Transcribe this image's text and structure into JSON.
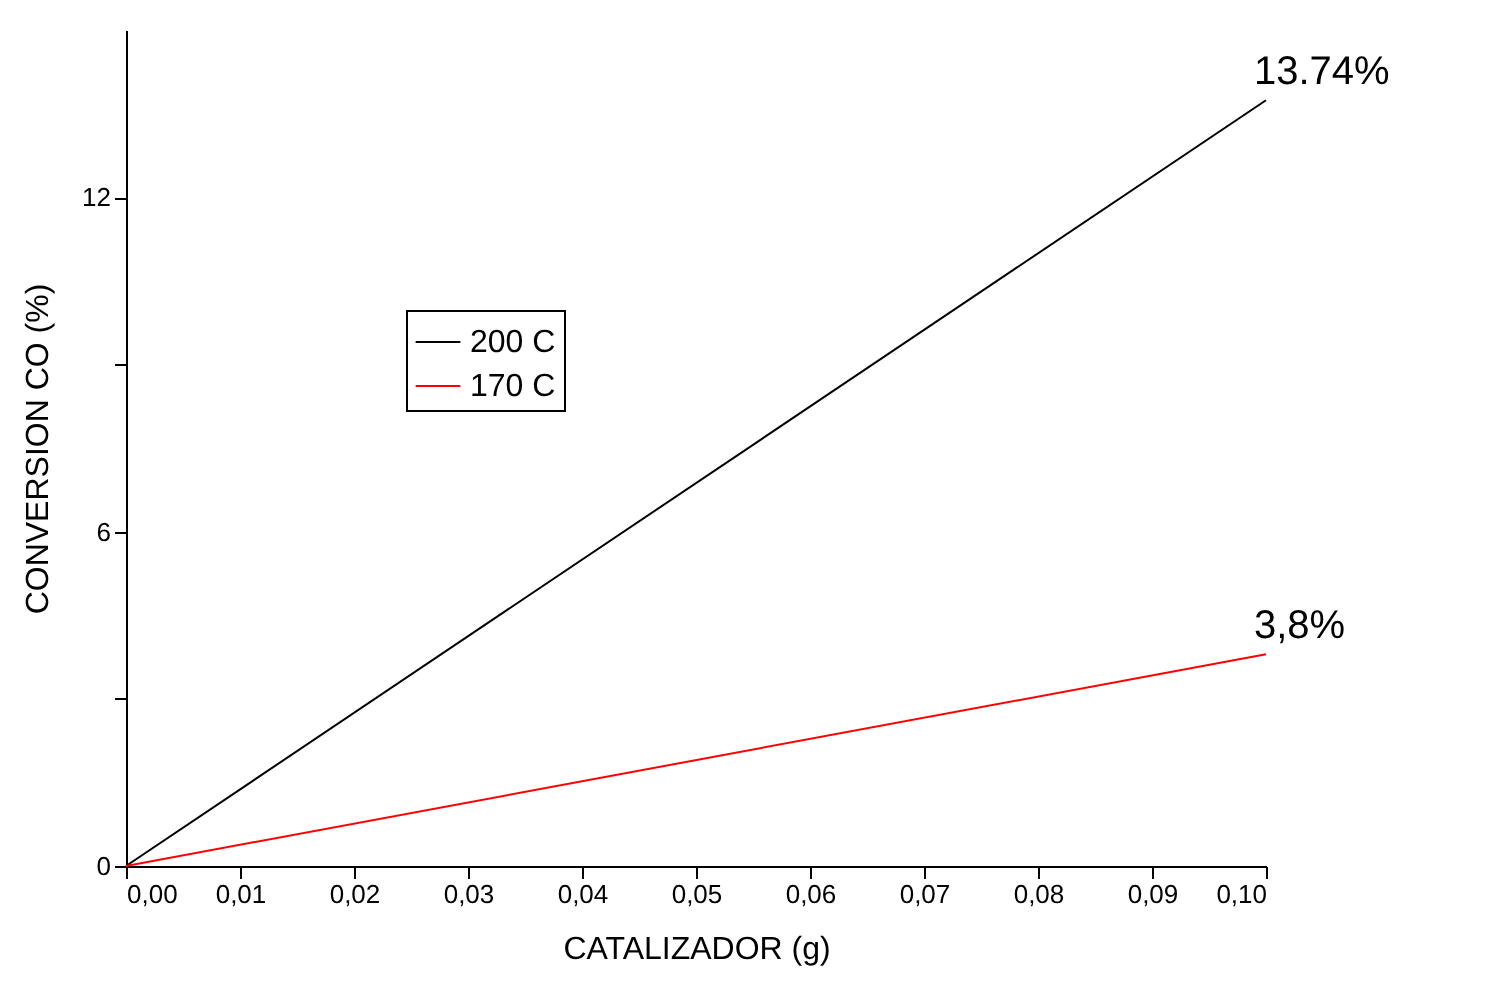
{
  "chart_data": {
    "type": "line",
    "xlabel": "CATALIZADOR (g)",
    "ylabel": "CONVERSION CO (%)",
    "x": [
      0,
      0.1
    ],
    "series": [
      {
        "name": "200 C",
        "color": "#000000",
        "values": [
          0,
          13.74
        ]
      },
      {
        "name": "170 C",
        "color": "#ff0000",
        "values": [
          0,
          3.8
        ]
      }
    ],
    "xlim": [
      0,
      0.1
    ],
    "ylim": [
      0,
      15
    ],
    "xticks": [
      {
        "value": 0,
        "label": "0,00"
      },
      {
        "value": 0.01,
        "label": "0,01"
      },
      {
        "value": 0.02,
        "label": "0,02"
      },
      {
        "value": 0.03,
        "label": "0,03"
      },
      {
        "value": 0.04,
        "label": "0,04"
      },
      {
        "value": 0.05,
        "label": "0,05"
      },
      {
        "value": 0.06,
        "label": "0,06"
      },
      {
        "value": 0.07,
        "label": "0,07"
      },
      {
        "value": 0.08,
        "label": "0,08"
      },
      {
        "value": 0.09,
        "label": "0,09"
      },
      {
        "value": 0.1,
        "label": "0,10"
      }
    ],
    "yticks": [
      0,
      {
        "value": 3,
        "label": null
      },
      6,
      {
        "value": 9,
        "label": null
      },
      12
    ],
    "annotations": [
      {
        "text": "13.74%",
        "x": 0.1,
        "y": 13.74
      },
      {
        "text": "3,8%",
        "x": 0.1,
        "y": 3.8
      }
    ],
    "legend": "top left",
    "grid": false,
    "marker": "none",
    "line_style": "solid"
  }
}
